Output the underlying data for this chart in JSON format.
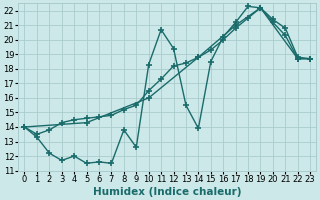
{
  "xlabel": "Humidex (Indice chaleur)",
  "xlim": [
    -0.5,
    23.5
  ],
  "ylim": [
    11,
    22.5
  ],
  "yticks": [
    11,
    12,
    13,
    14,
    15,
    16,
    17,
    18,
    19,
    20,
    21,
    22
  ],
  "xticks": [
    0,
    1,
    2,
    3,
    4,
    5,
    6,
    7,
    8,
    9,
    10,
    11,
    12,
    13,
    14,
    15,
    16,
    17,
    18,
    19,
    20,
    21,
    22,
    23
  ],
  "background_color": "#cce8e8",
  "grid_color": "#aacccc",
  "line_color": "#1a6b6b",
  "line1_x": [
    0,
    1,
    2,
    3,
    4,
    5,
    6,
    7,
    8,
    9,
    10,
    11,
    12,
    13,
    14,
    15,
    16,
    17,
    18,
    19,
    20,
    21,
    22,
    23
  ],
  "line1_y": [
    14.0,
    13.3,
    12.2,
    11.7,
    12.0,
    11.5,
    11.6,
    11.5,
    13.8,
    12.6,
    18.3,
    20.7,
    19.4,
    15.5,
    13.9,
    18.5,
    20.2,
    21.2,
    22.3,
    22.2,
    21.2,
    20.3,
    18.7,
    18.7
  ],
  "line2_x": [
    0,
    1,
    2,
    3,
    4,
    5,
    6,
    7,
    8,
    9,
    10,
    11,
    12,
    13,
    14,
    15,
    16,
    17,
    18,
    19,
    20,
    21,
    22,
    23
  ],
  "line2_y": [
    14.0,
    13.5,
    13.8,
    14.3,
    14.5,
    14.6,
    14.7,
    14.8,
    15.2,
    15.5,
    16.5,
    17.3,
    18.2,
    18.4,
    18.8,
    19.3,
    20.0,
    20.8,
    21.5,
    22.2,
    21.4,
    20.8,
    18.8,
    18.7
  ],
  "line3_x": [
    0,
    5,
    10,
    14,
    17,
    19,
    22,
    23
  ],
  "line3_y": [
    14.0,
    14.3,
    16.0,
    18.8,
    21.0,
    22.2,
    18.7,
    18.7
  ],
  "marker": "+",
  "markersize": 4,
  "linewidth": 1.0,
  "tick_fontsize": 6.0,
  "xlabel_fontsize": 7.5
}
